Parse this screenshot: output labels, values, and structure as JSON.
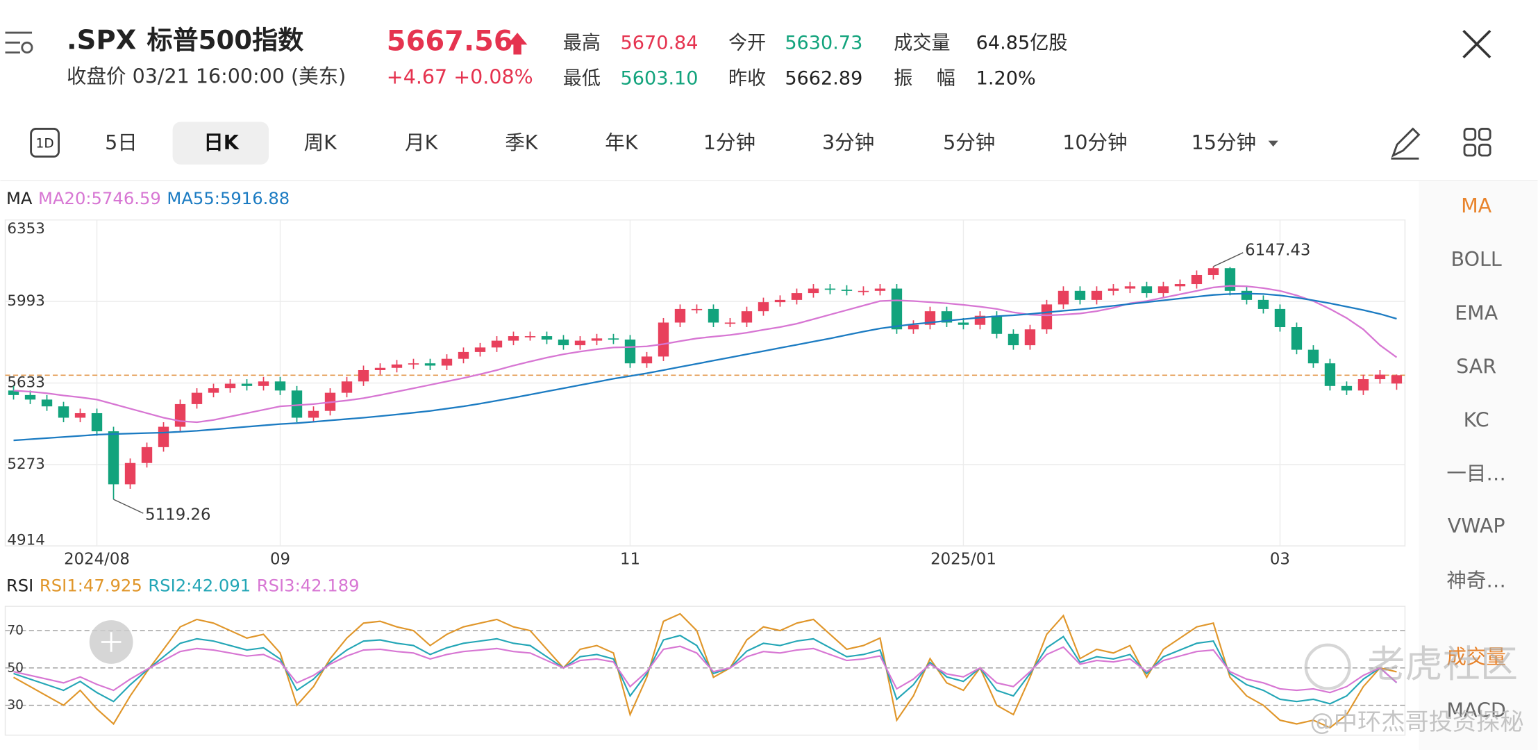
{
  "header": {
    "symbol": ".SPX",
    "name": "标普500指数",
    "price": "5667.56",
    "close_time": "收盘价 03/21 16:00:00 (美东)",
    "change": "+4.67 +0.08%",
    "stats": [
      {
        "label": "最高",
        "value": "5670.84"
      },
      {
        "label": "今开",
        "value": "5630.73"
      },
      {
        "label": "成交量",
        "value": "64.85亿股"
      },
      {
        "label": "最低",
        "value": "5603.10"
      },
      {
        "label": "昨收",
        "value": "5662.89"
      },
      {
        "label": "振    幅",
        "value": "1.20%"
      }
    ]
  },
  "toolbar": {
    "icon_label": "1D",
    "tabs": [
      "5日",
      "日K",
      "周K",
      "月K",
      "季K",
      "年K",
      "1分钟",
      "3分钟",
      "5分钟",
      "10分钟",
      "15分钟"
    ]
  },
  "side_menu": [
    "MA",
    "BOLL",
    "EMA",
    "SAR",
    "KC",
    "一目…",
    "VWAP",
    "神奇…",
    "成交量",
    "MACD"
  ],
  "watermark": [
    "老虎社区",
    "@中环杰哥投资探秘"
  ],
  "chart_data": [
    {
      "type": "candlestick",
      "title": "MA",
      "categories": [
        null,
        null,
        null,
        null,
        null,
        "2024/08",
        null,
        null,
        null,
        null,
        null,
        null,
        null,
        null,
        null,
        null,
        "09",
        null,
        null,
        null,
        null,
        null,
        null,
        null,
        null,
        null,
        null,
        null,
        null,
        null,
        null,
        null,
        null,
        null,
        null,
        null,
        null,
        "11",
        null,
        null,
        null,
        null,
        null,
        null,
        null,
        null,
        null,
        null,
        null,
        null,
        null,
        null,
        null,
        null,
        null,
        null,
        null,
        "2025/01",
        null,
        null,
        null,
        null,
        null,
        null,
        null,
        null,
        null,
        null,
        null,
        null,
        null,
        null,
        null,
        null,
        null,
        null,
        "03",
        null,
        null,
        null,
        null,
        null,
        null,
        null
      ],
      "open": [
        5600,
        5580,
        5560,
        5530,
        5480,
        5500,
        5420,
        5186,
        5280,
        5350,
        5440,
        5540,
        5590,
        5610,
        5630,
        5620,
        5640,
        5600,
        5480,
        5510,
        5590,
        5640,
        5690,
        5700,
        5715,
        5720,
        5710,
        5740,
        5770,
        5790,
        5820,
        5840,
        5840,
        5825,
        5800,
        5820,
        5830,
        5825,
        5720,
        5750,
        5900,
        5960,
        5960,
        5900,
        5900,
        5950,
        5990,
        6000,
        6030,
        6050,
        6045,
        6040,
        6040,
        6050,
        5870,
        5890,
        5950,
        5900,
        5890,
        5930,
        5850,
        5800,
        5870,
        5980,
        6040,
        6000,
        6040,
        6050,
        6060,
        6030,
        6060,
        6070,
        6110,
        6140,
        6040,
        6000,
        5960,
        5880,
        5780,
        5720,
        5620,
        5600,
        5650,
        5630.73
      ],
      "high": [
        5620,
        5600,
        5580,
        5550,
        5520,
        5520,
        5440,
        5300,
        5370,
        5460,
        5560,
        5610,
        5630,
        5650,
        5650,
        5660,
        5660,
        5620,
        5530,
        5610,
        5660,
        5710,
        5720,
        5735,
        5740,
        5740,
        5760,
        5790,
        5810,
        5840,
        5860,
        5860,
        5860,
        5845,
        5840,
        5850,
        5850,
        5845,
        5770,
        5920,
        5980,
        5980,
        5980,
        5920,
        5970,
        6010,
        6020,
        6050,
        6070,
        6070,
        6065,
        6060,
        6070,
        6070,
        5910,
        5970,
        5970,
        5920,
        5950,
        5950,
        5870,
        5890,
        6000,
        6060,
        6060,
        6060,
        6070,
        6080,
        6080,
        6080,
        6090,
        6130,
        6147.43,
        6145,
        6060,
        6020,
        5980,
        5900,
        5800,
        5740,
        5640,
        5670,
        5690,
        5670.84
      ],
      "low": [
        5560,
        5540,
        5510,
        5460,
        5460,
        5400,
        5119.26,
        5166,
        5260,
        5330,
        5420,
        5520,
        5570,
        5590,
        5600,
        5600,
        5580,
        5460,
        5460,
        5490,
        5570,
        5620,
        5670,
        5680,
        5695,
        5690,
        5690,
        5720,
        5750,
        5770,
        5800,
        5820,
        5805,
        5780,
        5780,
        5800,
        5805,
        5700,
        5700,
        5730,
        5880,
        5940,
        5880,
        5880,
        5880,
        5930,
        5970,
        5980,
        6010,
        6025,
        6020,
        6020,
        6020,
        5850,
        5850,
        5870,
        5880,
        5870,
        5870,
        5830,
        5780,
        5780,
        5850,
        5960,
        5980,
        5980,
        6020,
        6030,
        6010,
        6010,
        6040,
        6050,
        6090,
        6020,
        5980,
        5940,
        5860,
        5760,
        5700,
        5600,
        5580,
        5580,
        5630,
        5603.1
      ],
      "close": [
        5580,
        5560,
        5530,
        5480,
        5500,
        5420,
        5186,
        5280,
        5350,
        5440,
        5540,
        5590,
        5610,
        5630,
        5620,
        5640,
        5600,
        5480,
        5510,
        5590,
        5640,
        5690,
        5700,
        5715,
        5720,
        5710,
        5740,
        5770,
        5790,
        5820,
        5840,
        5840,
        5825,
        5800,
        5820,
        5830,
        5825,
        5720,
        5750,
        5900,
        5960,
        5960,
        5900,
        5900,
        5950,
        5990,
        6000,
        6030,
        6050,
        6045,
        6040,
        6040,
        6050,
        5870,
        5890,
        5950,
        5900,
        5890,
        5930,
        5850,
        5800,
        5870,
        5980,
        6040,
        6000,
        6040,
        6050,
        6060,
        6030,
        6060,
        6070,
        6110,
        6140,
        6040,
        6000,
        5960,
        5880,
        5780,
        5720,
        5620,
        5600,
        5650,
        5670,
        5667.56
      ],
      "up_color": "#e8405c",
      "down_color": "#12a37c",
      "series": [
        {
          "name": "MA20:5746.59",
          "color": "#d776d3",
          "values": [
            5600,
            5595,
            5588,
            5578,
            5570,
            5560,
            5540,
            5520,
            5500,
            5480,
            5465,
            5460,
            5470,
            5485,
            5500,
            5515,
            5530,
            5535,
            5540,
            5548,
            5556,
            5566,
            5580,
            5595,
            5610,
            5625,
            5640,
            5655,
            5672,
            5690,
            5710,
            5728,
            5745,
            5760,
            5772,
            5782,
            5790,
            5792,
            5795,
            5805,
            5818,
            5830,
            5838,
            5845,
            5855,
            5868,
            5880,
            5895,
            5915,
            5935,
            5955,
            5975,
            5995,
            5998,
            5995,
            5990,
            5985,
            5978,
            5970,
            5960,
            5945,
            5935,
            5932,
            5935,
            5940,
            5950,
            5965,
            5985,
            5995,
            6010,
            6025,
            6040,
            6055,
            6062,
            6060,
            6052,
            6040,
            6020,
            5995,
            5960,
            5920,
            5870,
            5800,
            5746.59
          ]
        },
        {
          "name": "MA55:5916.88",
          "color": "#1b7bc2",
          "values": [
            5380,
            5385,
            5390,
            5395,
            5400,
            5405,
            5408,
            5410,
            5412,
            5414,
            5418,
            5422,
            5428,
            5434,
            5440,
            5446,
            5452,
            5456,
            5462,
            5468,
            5474,
            5480,
            5487,
            5494,
            5502,
            5510,
            5520,
            5530,
            5542,
            5555,
            5568,
            5582,
            5596,
            5610,
            5624,
            5638,
            5652,
            5664,
            5676,
            5690,
            5704,
            5718,
            5732,
            5746,
            5760,
            5774,
            5788,
            5802,
            5816,
            5830,
            5845,
            5860,
            5874,
            5884,
            5893,
            5900,
            5908,
            5915,
            5922,
            5928,
            5932,
            5938,
            5945,
            5952,
            5958,
            5966,
            5974,
            5982,
            5990,
            5998,
            6006,
            6014,
            6022,
            6026,
            6028,
            6026,
            6020,
            6010,
            5998,
            5985,
            5970,
            5955,
            5938,
            5916.88
          ]
        }
      ],
      "ylim": [
        4914,
        6353
      ],
      "yticks": [
        6353,
        5993,
        5633,
        5273,
        4914
      ],
      "grid": true,
      "last_price_color": "#e39a4f"
    },
    {
      "type": "line",
      "title": "RSI",
      "series": [
        {
          "name": "RSI1:47.925",
          "color": "#e0962a",
          "values": [
            45,
            40,
            35,
            30,
            38,
            28,
            20,
            35,
            48,
            60,
            72,
            76,
            74,
            70,
            66,
            68,
            58,
            30,
            40,
            55,
            66,
            74,
            75,
            72,
            70,
            62,
            68,
            72,
            74,
            76,
            72,
            70,
            60,
            50,
            60,
            62,
            58,
            25,
            45,
            75,
            79,
            70,
            45,
            50,
            65,
            72,
            70,
            74,
            76,
            68,
            60,
            62,
            66,
            22,
            35,
            55,
            42,
            38,
            50,
            30,
            25,
            45,
            68,
            78,
            55,
            60,
            58,
            62,
            45,
            60,
            66,
            72,
            74,
            45,
            35,
            30,
            22,
            20,
            22,
            18,
            25,
            40,
            50,
            47.925
          ]
        },
        {
          "name": "RSI2:42.091",
          "color": "#23a6b6",
          "values": [
            47,
            44,
            41,
            38,
            42.8,
            36.8,
            32,
            41,
            48.8,
            56,
            63.2,
            65.6,
            64.4,
            62,
            59.6,
            60.8,
            54.8,
            38,
            44,
            53,
            59.6,
            64.4,
            65,
            63.2,
            62,
            57.2,
            60.8,
            63.2,
            64.4,
            65.6,
            63.2,
            62,
            56,
            50,
            56,
            57.2,
            54.8,
            35,
            47,
            65,
            67.4,
            62,
            47,
            50,
            59,
            63.2,
            62,
            64.4,
            65.6,
            60.8,
            56,
            57.2,
            59.6,
            33.2,
            41,
            53,
            45.2,
            42.8,
            50,
            38,
            35,
            47,
            60.8,
            66.8,
            53,
            56,
            54.8,
            57.2,
            47,
            56,
            59.6,
            63.2,
            64.4,
            47,
            41,
            38,
            33.2,
            32,
            33.2,
            30.8,
            35,
            44,
            50,
            42.091
          ]
        },
        {
          "name": "RSI3:42.189",
          "color": "#d776d3",
          "values": [
            48,
            46,
            44,
            42,
            45.2,
            41.2,
            38,
            44,
            49.2,
            54,
            58.8,
            60.4,
            59.6,
            58,
            56.4,
            57.2,
            53.2,
            42,
            46,
            52,
            56.4,
            59.6,
            60,
            58.8,
            58,
            54.8,
            57.2,
            58.8,
            59.6,
            60.4,
            58.8,
            58,
            54,
            50,
            54,
            54.8,
            53.2,
            40,
            48,
            60,
            61.6,
            58,
            48,
            50,
            56,
            58.8,
            58,
            59.6,
            60.4,
            57.2,
            54,
            54.8,
            56.4,
            38.8,
            44,
            52,
            46.8,
            45.2,
            50,
            42,
            40,
            48,
            57.2,
            61.2,
            52,
            54,
            53.2,
            54.8,
            48,
            54,
            56.4,
            58.8,
            59.6,
            48,
            44,
            42,
            38.8,
            38,
            38.8,
            36.8,
            40,
            46,
            50,
            42.189
          ]
        }
      ],
      "ylim": [
        14,
        83
      ],
      "yticks": [
        70,
        50,
        30
      ],
      "grid": true
    }
  ]
}
